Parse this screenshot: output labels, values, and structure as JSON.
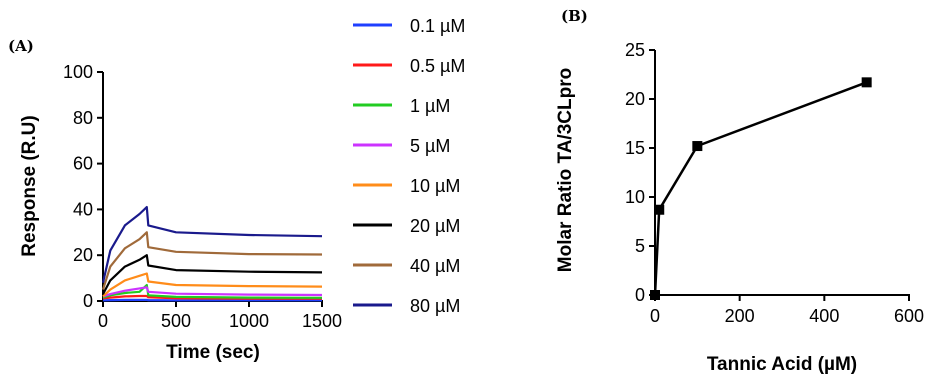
{
  "chart_data": [
    {
      "panel_label": "(A)",
      "type": "line",
      "xlabel": "Time (sec)",
      "ylabel": "Response (R.U)",
      "xlim": [
        0,
        1500
      ],
      "ylim": [
        0,
        100
      ],
      "xticks": [
        0,
        500,
        1000,
        1500
      ],
      "yticks": [
        0,
        20,
        40,
        60,
        80,
        100
      ],
      "grid": false,
      "legend_position": "right",
      "series": [
        {
          "name": "0.1 µM",
          "color": "#1f3fff",
          "x": [
            0,
            50,
            150,
            250,
            300,
            310,
            500,
            1000,
            1500
          ],
          "y": [
            0.3,
            0.4,
            0.5,
            0.5,
            0.5,
            0.4,
            0.3,
            0.3,
            0.3
          ]
        },
        {
          "name": "0.5 µM",
          "color": "#ff1a1a",
          "x": [
            0,
            50,
            150,
            250,
            300,
            310,
            500,
            1000,
            1500
          ],
          "y": [
            1.2,
            1.5,
            2.0,
            2.2,
            2.2,
            1.6,
            1.2,
            1.0,
            1.0
          ]
        },
        {
          "name": "1 µM",
          "color": "#22cc22",
          "x": [
            0,
            50,
            150,
            250,
            300,
            310,
            500,
            1000,
            1500
          ],
          "y": [
            1.5,
            2.5,
            3.5,
            4.0,
            7.0,
            2.5,
            1.8,
            1.5,
            1.4
          ]
        },
        {
          "name": "5 µM",
          "color": "#cc33ff",
          "x": [
            0,
            50,
            150,
            250,
            300,
            310,
            500,
            1000,
            1500
          ],
          "y": [
            2.0,
            3.0,
            4.5,
            5.5,
            6.0,
            4.0,
            3.2,
            2.8,
            2.6
          ]
        },
        {
          "name": "10 µM",
          "color": "#ff8c1a",
          "x": [
            0,
            50,
            150,
            250,
            300,
            310,
            500,
            1000,
            1500
          ],
          "y": [
            2.0,
            5.0,
            9.0,
            11.0,
            12.0,
            8.5,
            7.0,
            6.5,
            6.3
          ]
        },
        {
          "name": "20 µM",
          "color": "#000000",
          "x": [
            0,
            50,
            150,
            250,
            300,
            310,
            500,
            1000,
            1500
          ],
          "y": [
            3.0,
            9.0,
            15.0,
            18.0,
            20.0,
            15.5,
            13.5,
            12.8,
            12.5
          ]
        },
        {
          "name": "40 µM",
          "color": "#a06a3a",
          "x": [
            0,
            50,
            150,
            250,
            300,
            310,
            500,
            1000,
            1500
          ],
          "y": [
            5.0,
            15.0,
            23.0,
            27.0,
            30.0,
            23.5,
            21.5,
            20.5,
            20.3
          ]
        },
        {
          "name": "80 µM",
          "color": "#1a1a8c",
          "x": [
            0,
            50,
            150,
            250,
            300,
            310,
            500,
            1000,
            1500
          ],
          "y": [
            8.0,
            22.0,
            33.0,
            38.0,
            41.0,
            33.0,
            30.0,
            28.8,
            28.3
          ]
        }
      ]
    },
    {
      "panel_label": "(B)",
      "type": "scatter",
      "xlabel": "Tannic Acid (µM)",
      "ylabel": "Molar Ratio TA/3CLpro",
      "xlim": [
        0,
        600
      ],
      "ylim": [
        0,
        25
      ],
      "xticks": [
        0,
        200,
        400,
        600
      ],
      "yticks": [
        0,
        5,
        10,
        15,
        20,
        25
      ],
      "grid": false,
      "series": [
        {
          "color": "#000000",
          "x": [
            0,
            10,
            100,
            500
          ],
          "y": [
            0,
            8.7,
            15.2,
            21.7
          ]
        }
      ]
    }
  ]
}
